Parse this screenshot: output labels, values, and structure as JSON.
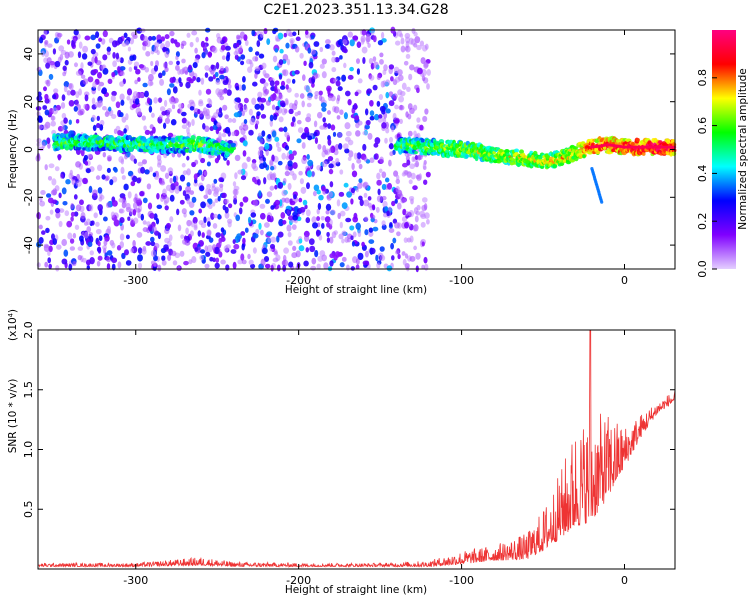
{
  "page": {
    "title": "C2E1.2023.351.13.34.G28"
  },
  "chart_data": [
    {
      "type": "heatmap",
      "title": "C2E1.2023.351.13.34.G28",
      "xlabel": "Height of straight line (km)",
      "ylabel": "Frequency (Hz)",
      "xlim": [
        -360,
        31
      ],
      "ylim": [
        -50,
        50
      ],
      "x_ticks": [
        -300,
        -200,
        -100,
        0
      ],
      "x_tick_labels": [
        "-300",
        "-200",
        "-100",
        "0"
      ],
      "y_ticks": [
        -40,
        -20,
        0,
        20,
        40
      ],
      "y_tick_labels": [
        "-40",
        "-20",
        "0",
        "20",
        "40"
      ],
      "colorbar": {
        "label": "Normalized spectral amplitude",
        "range": [
          0,
          1
        ],
        "ticks": [
          0,
          0.2,
          0.4,
          0.6,
          0.8
        ],
        "tick_labels": [
          "0.0",
          "0.2",
          "0.4",
          "0.6",
          "0.8"
        ],
        "colormap": "rainbow",
        "colors": [
          "#e4cfff",
          "#8000ff",
          "#0000ff",
          "#00ffff",
          "#00ff00",
          "#ffff00",
          "#ff0000",
          "#ff0080"
        ]
      },
      "noise_regions": [
        {
          "x": [
            -360,
            -242
          ],
          "f": [
            -50,
            50
          ],
          "amp": [
            0.05,
            0.3
          ]
        },
        {
          "x": [
            -240,
            -140
          ],
          "f": [
            -50,
            50
          ],
          "amp": [
            0.05,
            0.35
          ]
        },
        {
          "x": [
            -140,
            -120
          ],
          "f": [
            -50,
            50
          ],
          "amp": [
            0.05,
            0.15
          ]
        }
      ],
      "ridge": {
        "x": [
          -350,
          -320,
          -300,
          -280,
          -260,
          -240,
          -140,
          -120,
          -100,
          -80,
          -60,
          -50,
          -40,
          -30,
          -20,
          -10,
          0,
          20,
          31
        ],
        "f": [
          3,
          3,
          2,
          2,
          2,
          0,
          2,
          1,
          0,
          -2,
          -4,
          -5,
          -4,
          -1,
          1,
          2,
          1,
          1,
          1
        ],
        "amp": [
          0.55,
          0.55,
          0.55,
          0.55,
          0.6,
          0.5,
          0.55,
          0.6,
          0.65,
          0.65,
          0.7,
          0.7,
          0.7,
          0.75,
          0.85,
          0.85,
          0.9,
          0.95,
          0.95
        ]
      },
      "branch": {
        "x": [
          -20,
          -14
        ],
        "f": [
          -8,
          -22
        ],
        "amp": 0.35
      }
    },
    {
      "type": "line",
      "xlabel": "Height of straight line (km)",
      "ylabel": "SNR (10 * v/v)",
      "y_multiplier": "(x10⁴)",
      "xlim": [
        -360,
        31
      ],
      "ylim": [
        0,
        2.0
      ],
      "x_ticks": [
        -300,
        -200,
        -100,
        0
      ],
      "x_tick_labels": [
        "-300",
        "-200",
        "-100",
        "0"
      ],
      "y_ticks": [
        0.5,
        1.0,
        1.5,
        2.0
      ],
      "y_tick_labels": [
        "0.5",
        "1.0",
        "1.5",
        "2.0"
      ],
      "color": "#ee3333",
      "envelope": {
        "x": [
          -360,
          -300,
          -260,
          -240,
          -200,
          -150,
          -120,
          -100,
          -80,
          -60,
          -50,
          -40,
          -30,
          -20,
          -10,
          0,
          10,
          20,
          31
        ],
        "base": [
          0.02,
          0.02,
          0.03,
          0.02,
          0.02,
          0.02,
          0.02,
          0.04,
          0.07,
          0.08,
          0.15,
          0.25,
          0.35,
          0.4,
          0.6,
          0.85,
          1.1,
          1.3,
          1.4
        ],
        "peak": [
          0.05,
          0.05,
          0.1,
          0.06,
          0.05,
          0.05,
          0.07,
          0.15,
          0.2,
          0.3,
          0.5,
          0.8,
          1.2,
          1.3,
          1.3,
          1.2,
          1.3,
          1.4,
          1.5
        ]
      },
      "spike": {
        "x": -21,
        "y": 2.0
      }
    }
  ]
}
